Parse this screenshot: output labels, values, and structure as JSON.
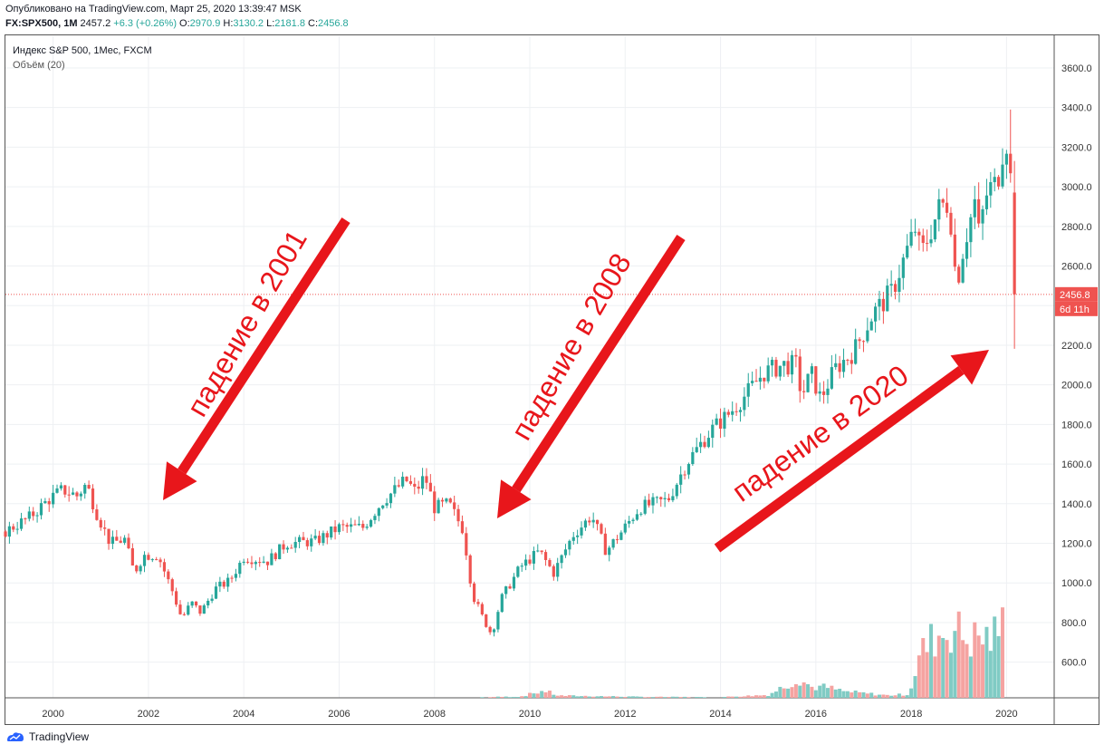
{
  "header": {
    "published": "Опубликовано на TradingView.com, Март 25, 2020 13:39:47 MSK",
    "symbol": "FX:SPX500, 1M",
    "price": "2457.2",
    "change": "+6.3 (+0.26%)",
    "o_label": "O:",
    "o_value": "2970.9",
    "h_label": "H:",
    "h_value": "3130.2",
    "l_label": "L:",
    "l_value": "2181.8",
    "c_label": "C:",
    "c_value": "2456.8"
  },
  "legend": {
    "title": "Индекс S&P 500, 1Мес, FXCM",
    "volume": "Объём (20)"
  },
  "footer": {
    "brand": "TradingView",
    "logo_icon": "tradingview-logo-icon"
  },
  "annotations": [
    {
      "text": "падение в 2001",
      "color": "#e8161b"
    },
    {
      "text": "падение в 2008",
      "color": "#e8161b"
    },
    {
      "text": "падение в 2020",
      "color": "#e8161b"
    }
  ],
  "colors": {
    "up": "#26a69a",
    "down": "#ef5350",
    "vol_up": "#80cbc4",
    "vol_down": "#f5a3a1",
    "arrow": "#e8161b"
  },
  "chart_data": {
    "type": "candlestick",
    "title": "Индекс S&P 500, 1Мес, FXCM",
    "x_ticks": [
      "2000",
      "2002",
      "2004",
      "2006",
      "2008",
      "2010",
      "2012",
      "2014",
      "2016",
      "2018",
      "2020"
    ],
    "y_ticks": [
      "600.0",
      "800.0",
      "1000.0",
      "1200.0",
      "1400.0",
      "1600.0",
      "1800.0",
      "2000.0",
      "2200.0",
      "2400.0",
      "2600.0",
      "2800.0",
      "3000.0",
      "3200.0",
      "3400.0",
      "3600.0"
    ],
    "ylim": [
      420,
      3760
    ],
    "x_range": [
      1999.0,
      2021.0
    ],
    "last_price_label": "2456.8",
    "last_price": 2456.8,
    "countdown_label": "6d 11h",
    "grid": true,
    "series_anchors": [
      [
        1999.0,
        1260
      ],
      [
        1999.5,
        1330
      ],
      [
        1999.9,
        1420
      ],
      [
        2000.2,
        1470
      ],
      [
        2000.5,
        1440
      ],
      [
        2000.7,
        1500
      ],
      [
        2000.9,
        1360
      ],
      [
        2001.2,
        1200
      ],
      [
        2001.5,
        1220
      ],
      [
        2001.7,
        1050
      ],
      [
        2001.9,
        1140
      ],
      [
        2002.2,
        1140
      ],
      [
        2002.5,
        960
      ],
      [
        2002.7,
        820
      ],
      [
        2002.9,
        900
      ],
      [
        2003.1,
        850
      ],
      [
        2003.4,
        970
      ],
      [
        2003.7,
        1010
      ],
      [
        2004.0,
        1130
      ],
      [
        2004.5,
        1110
      ],
      [
        2004.9,
        1200
      ],
      [
        2005.5,
        1210
      ],
      [
        2006.0,
        1280
      ],
      [
        2006.5,
        1280
      ],
      [
        2006.9,
        1410
      ],
      [
        2007.4,
        1520
      ],
      [
        2007.6,
        1460
      ],
      [
        2007.8,
        1540
      ],
      [
        2008.0,
        1380
      ],
      [
        2008.3,
        1400
      ],
      [
        2008.6,
        1270
      ],
      [
        2008.8,
        940
      ],
      [
        2009.0,
        830
      ],
      [
        2009.2,
        740
      ],
      [
        2009.4,
        920
      ],
      [
        2009.8,
        1080
      ],
      [
        2010.2,
        1160
      ],
      [
        2010.5,
        1050
      ],
      [
        2010.9,
        1240
      ],
      [
        2011.3,
        1340
      ],
      [
        2011.6,
        1160
      ],
      [
        2011.9,
        1250
      ],
      [
        2012.3,
        1380
      ],
      [
        2012.6,
        1400
      ],
      [
        2012.9,
        1420
      ],
      [
        2013.3,
        1610
      ],
      [
        2013.8,
        1770
      ],
      [
        2014.2,
        1860
      ],
      [
        2014.6,
        1970
      ],
      [
        2014.9,
        2060
      ],
      [
        2015.3,
        2100
      ],
      [
        2015.6,
        2100
      ],
      [
        2015.7,
        1940
      ],
      [
        2015.9,
        2060
      ],
      [
        2016.1,
        1930
      ],
      [
        2016.4,
        2080
      ],
      [
        2016.8,
        2170
      ],
      [
        2017.2,
        2360
      ],
      [
        2017.6,
        2470
      ],
      [
        2017.9,
        2670
      ],
      [
        2018.1,
        2800
      ],
      [
        2018.2,
        2650
      ],
      [
        2018.6,
        2900
      ],
      [
        2018.8,
        2920
      ],
      [
        2018.95,
        2500
      ],
      [
        2019.1,
        2700
      ],
      [
        2019.35,
        2940
      ],
      [
        2019.4,
        2750
      ],
      [
        2019.6,
        2980
      ],
      [
        2019.8,
        3020
      ],
      [
        2019.95,
        3230
      ],
      [
        2020.05,
        3230
      ],
      [
        2020.1,
        2950
      ],
      [
        2020.2,
        2456.8
      ]
    ],
    "volume_anchors": [
      [
        2009.0,
        4
      ],
      [
        2009.8,
        7
      ],
      [
        2010.3,
        40
      ],
      [
        2010.6,
        12
      ],
      [
        2011.7,
        8
      ],
      [
        2012.5,
        5
      ],
      [
        2014.0,
        4
      ],
      [
        2015.0,
        16
      ],
      [
        2015.65,
        110
      ],
      [
        2015.9,
        60
      ],
      [
        2016.2,
        60
      ],
      [
        2016.6,
        35
      ],
      [
        2017.5,
        14
      ],
      [
        2017.95,
        20
      ],
      [
        2018.2,
        250
      ],
      [
        2018.5,
        340
      ],
      [
        2018.9,
        390
      ],
      [
        2019.2,
        320
      ],
      [
        2019.45,
        340
      ],
      [
        2019.7,
        330
      ],
      [
        2019.95,
        420
      ],
      [
        2020.1,
        580
      ],
      [
        2020.2,
        830
      ]
    ]
  }
}
